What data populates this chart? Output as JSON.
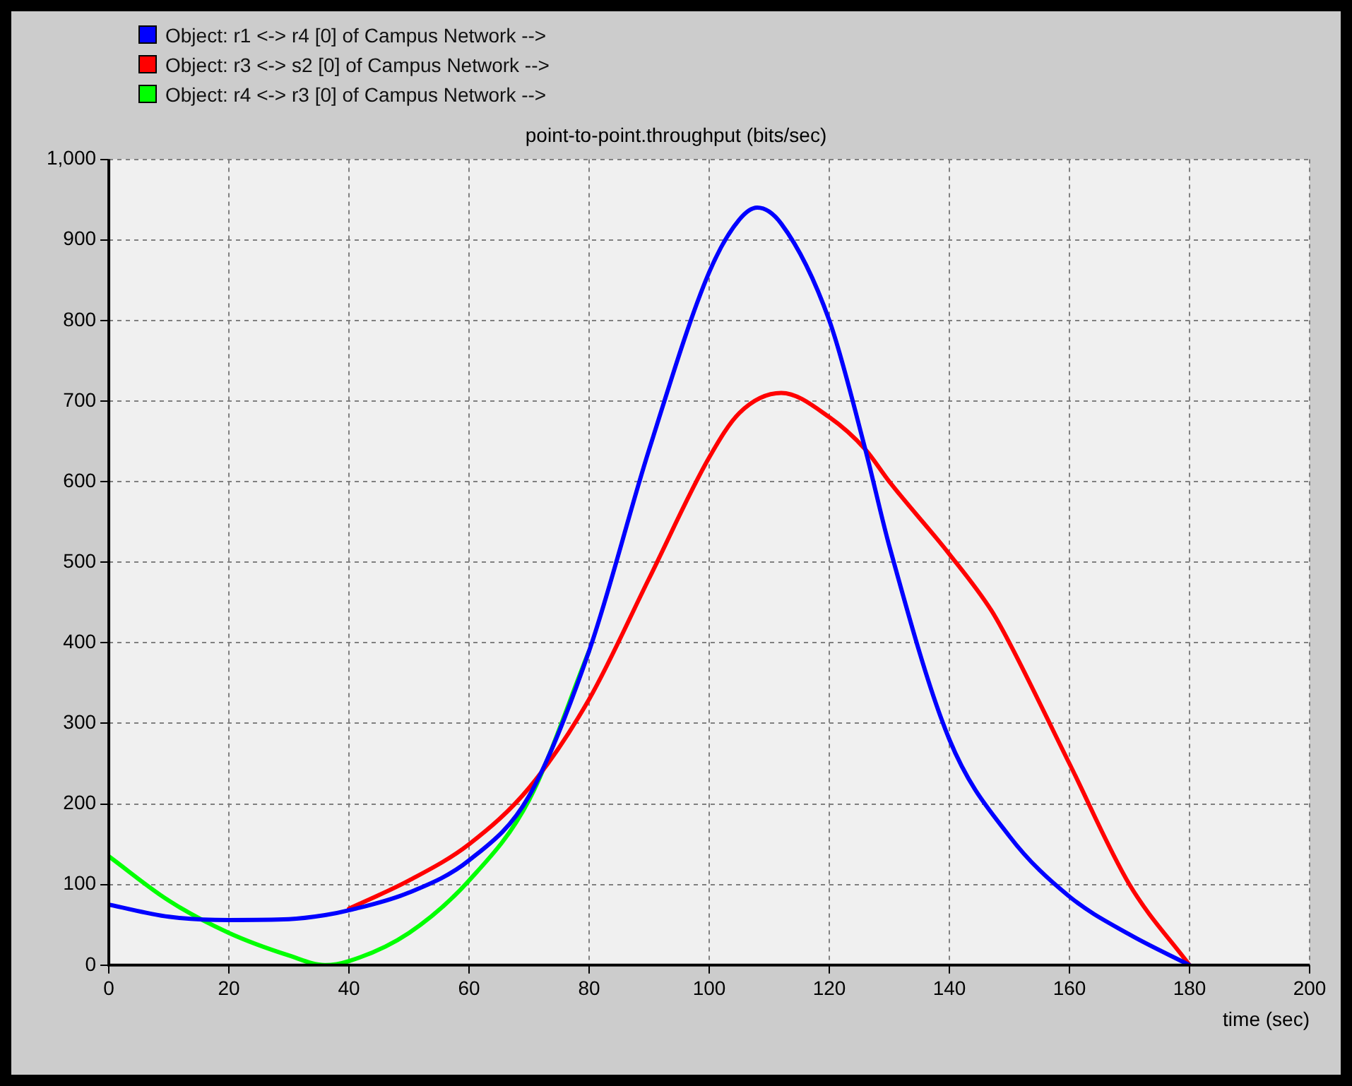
{
  "chart_data": {
    "type": "line",
    "title": "point-to-point.throughput (bits/sec)",
    "xlabel": "time (sec)",
    "xlim": [
      0,
      200
    ],
    "xticks": [
      0,
      20,
      40,
      60,
      80,
      100,
      120,
      140,
      160,
      180,
      200
    ],
    "ylim": [
      0,
      1000
    ],
    "yticks": [
      0,
      100,
      200,
      300,
      400,
      500,
      600,
      700,
      800,
      900,
      {
        "value": 1000,
        "label": "1,000"
      }
    ],
    "grid": true,
    "legend": "top left",
    "marker": "none",
    "line_style": "solid",
    "series": [
      {
        "name": "Object: r4 <-> r3 [0] of Campus Network -->",
        "color": "#00ff00",
        "x": [
          0,
          10,
          20,
          30,
          36,
          40,
          50,
          60,
          70,
          80
        ],
        "values": [
          135,
          80,
          40,
          12,
          0,
          5,
          40,
          105,
          205,
          390
        ]
      },
      {
        "name": "Object: r3 <-> s2 [0] of Campus Network -->",
        "color": "#ff0000",
        "x": [
          40,
          50,
          60,
          70,
          80,
          90,
          100,
          105,
          112,
          120,
          126,
          130,
          140,
          147,
          150,
          160,
          170,
          180
        ],
        "values": [
          70,
          105,
          150,
          220,
          330,
          480,
          630,
          685,
          710,
          680,
          640,
          600,
          510,
          440,
          400,
          250,
          100,
          0
        ]
      },
      {
        "name": "Object: r1 <-> r4 [0] of Campus Network -->",
        "color": "#0000ff",
        "x": [
          0,
          10,
          20,
          30,
          36,
          40,
          50,
          60,
          70,
          80,
          90,
          100,
          105,
          108,
          112,
          120,
          126,
          130,
          140,
          150,
          160,
          170,
          180
        ],
        "values": [
          75,
          60,
          56,
          57,
          62,
          68,
          90,
          130,
          210,
          390,
          640,
          860,
          925,
          940,
          920,
          800,
          640,
          520,
          280,
          160,
          85,
          38,
          0
        ]
      }
    ]
  }
}
